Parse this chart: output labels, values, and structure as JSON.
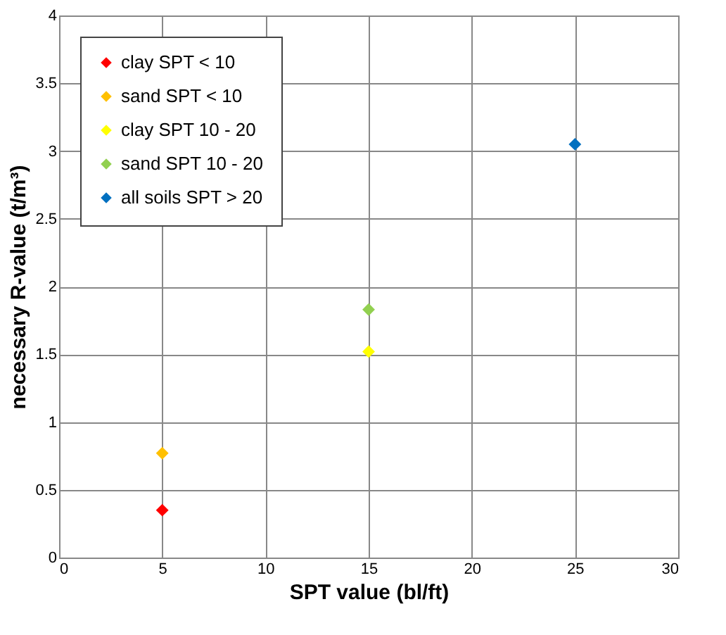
{
  "chart_data": {
    "type": "scatter",
    "xlabel": "SPT value (bl/ft)",
    "ylabel": "necessary R-value (t/m³)",
    "xlim": [
      0,
      30
    ],
    "xticks": [
      0,
      5,
      10,
      15,
      20,
      25,
      30
    ],
    "ylim": [
      0,
      4
    ],
    "yticks": [
      0,
      0.5,
      1,
      1.5,
      2,
      2.5,
      3,
      3.5,
      4
    ],
    "grid": true,
    "legend": "top left",
    "marker": "diamond",
    "series": [
      {
        "name": "clay SPT < 10",
        "color": "#ff0000",
        "x": [
          5
        ],
        "values": [
          0.35
        ]
      },
      {
        "name": "sand SPT < 10",
        "color": "#ffc000",
        "x": [
          5
        ],
        "values": [
          0.77
        ]
      },
      {
        "name": "clay SPT 10 - 20",
        "color": "#ffff00",
        "x": [
          15
        ],
        "values": [
          1.52
        ]
      },
      {
        "name": "sand SPT 10 - 20",
        "color": "#92d050",
        "x": [
          15
        ],
        "values": [
          1.83
        ]
      },
      {
        "name": "all soils SPT > 20",
        "color": "#0070c0",
        "x": [
          25
        ],
        "values": [
          3.05
        ]
      }
    ]
  }
}
